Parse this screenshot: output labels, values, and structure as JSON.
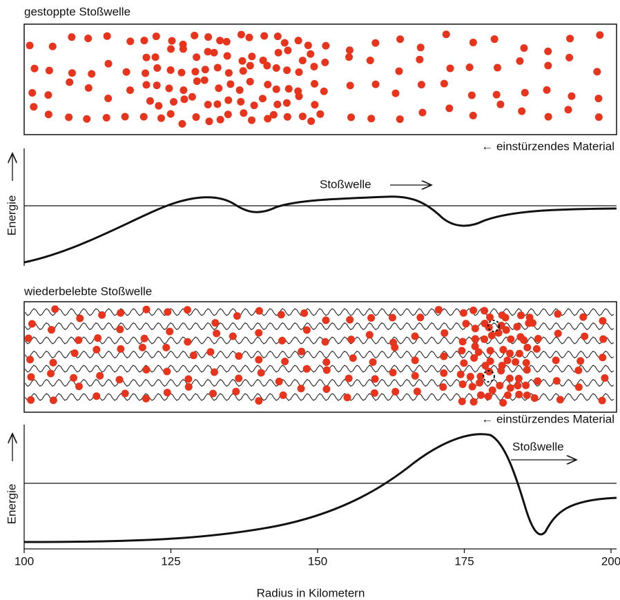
{
  "panels": [
    {
      "title": "gestoppte Stoßwelle",
      "flow_label": "← einstürzendes Material",
      "energy_label": "Energie",
      "shock_label": "Stoßwelle"
    },
    {
      "title": "wiederbelebte Stoßwelle",
      "flow_label": "← einstürzendes Material",
      "energy_label": "Energie",
      "shock_label": "Stoßwelle"
    }
  ],
  "x_axis": {
    "title": "Radius in Kilometern",
    "ticks": [
      100,
      125,
      150,
      175,
      200
    ]
  }
}
